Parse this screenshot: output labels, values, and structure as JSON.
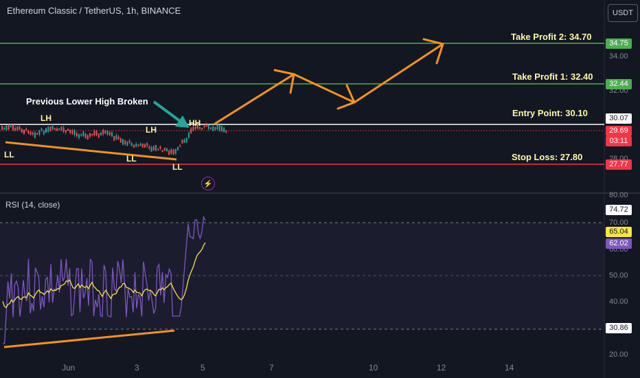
{
  "header": {
    "symbol_title": "Ethereum Classic / TetherUS, 1h, BINANCE",
    "currency_button": "USDT"
  },
  "annotations": {
    "take_profit_2": "Take Profit 2: 34.70",
    "take_profit_1": "Take Profit 1: 32.40",
    "entry_point": "Entry Point: 30.10",
    "stop_loss": "Stop Loss: 27.80",
    "previous_lower_high": "Previous Lower High Broken",
    "swing_labels": [
      "LL",
      "LH",
      "LH",
      "LL",
      "LL",
      "HH"
    ]
  },
  "price_scale": {
    "ticks": [
      "34.00",
      "32.00",
      "28.00"
    ],
    "tags": [
      {
        "value": "34.75",
        "color": "#4caf50",
        "text_color": "#ffffff"
      },
      {
        "value": "32.44",
        "color": "#4caf50",
        "text_color": "#ffffff"
      },
      {
        "value": "30.07",
        "color": "#ffffff",
        "text_color": "#131722"
      },
      {
        "value": "29.69",
        "color": "#f23645",
        "text_color": "#ffffff"
      },
      {
        "value": "03:11",
        "color": "#f23645",
        "text_color": "#ffffff"
      },
      {
        "value": "27.77",
        "color": "#f23645",
        "text_color": "#ffffff"
      }
    ]
  },
  "rsi_panel": {
    "title": "RSI (14, close)",
    "ticks": [
      "80.00",
      "70.00",
      "60.00",
      "50.00",
      "40.00",
      "20.00"
    ],
    "tags": [
      {
        "value": "74.72",
        "color": "#ffffff",
        "text_color": "#131722"
      },
      {
        "value": "65.04",
        "color": "#f5e642",
        "text_color": "#131722"
      },
      {
        "value": "62.02",
        "color": "#7e57c2",
        "text_color": "#ffffff"
      },
      {
        "value": "30.86",
        "color": "#ffffff",
        "text_color": "#131722"
      }
    ]
  },
  "time_axis": [
    "Jun",
    "3",
    "5",
    "7",
    "10",
    "12",
    "14"
  ],
  "colors": {
    "background": "#131722",
    "take_profit_line": "#4caf50",
    "stop_loss_line": "#f23645",
    "entry_line": "#ffffff",
    "trend_arrow": "#f7931a",
    "rsi_line": "#7e57c2",
    "rsi_ma": "#f5e642",
    "annotation_arrow": "#26a69a"
  },
  "icons": [
    "lightning-icon"
  ],
  "chart_data": {
    "type": "line",
    "title": "Ethereum Classic / TetherUS, 1h, BINANCE",
    "levels": {
      "take_profit_2": 34.7,
      "take_profit_1": 32.4,
      "entry": 30.1,
      "stop_loss": 27.8
    },
    "last_price": 29.69,
    "rsi": {
      "value": 62.02,
      "ma": 65.04,
      "peak": 74.72,
      "low": 30.86,
      "bands": [
        30,
        50,
        70
      ]
    }
  }
}
